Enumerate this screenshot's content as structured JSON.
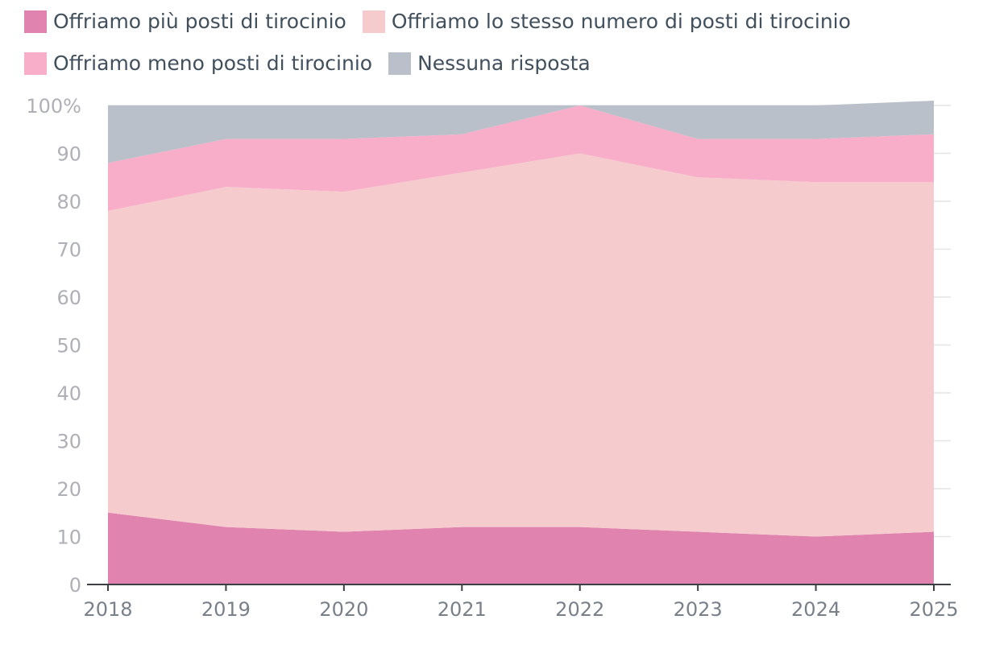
{
  "chart_data": {
    "type": "area",
    "stacked": true,
    "categories": [
      "2018",
      "2019",
      "2020",
      "2021",
      "2022",
      "2023",
      "2024",
      "2025"
    ],
    "series": [
      {
        "name": "Offriamo più posti di tirocinio",
        "color": "#e083ae",
        "values": [
          15,
          12,
          11,
          12,
          12,
          11,
          10,
          11
        ]
      },
      {
        "name": "Offriamo lo stesso numero di posti di tirocinio",
        "color": "#f5cbcd",
        "values": [
          63,
          71,
          71,
          74,
          78,
          74,
          74,
          73
        ]
      },
      {
        "name": "Offriamo meno posti di tirocinio",
        "color": "#f8adc9",
        "values": [
          10,
          10,
          11,
          8,
          10,
          8,
          9,
          10
        ]
      },
      {
        "name": "Nessuna risposta",
        "color": "#b9c0c9",
        "values": [
          12,
          7,
          7,
          6,
          0,
          7,
          7,
          7
        ]
      }
    ],
    "y_ticks": [
      "0",
      "10",
      "20",
      "30",
      "40",
      "50",
      "60",
      "70",
      "80",
      "90",
      "100%"
    ],
    "ylim": [
      0,
      100
    ],
    "grid": true,
    "legend_position": "top-left",
    "title": "",
    "xlabel": "",
    "ylabel": ""
  }
}
